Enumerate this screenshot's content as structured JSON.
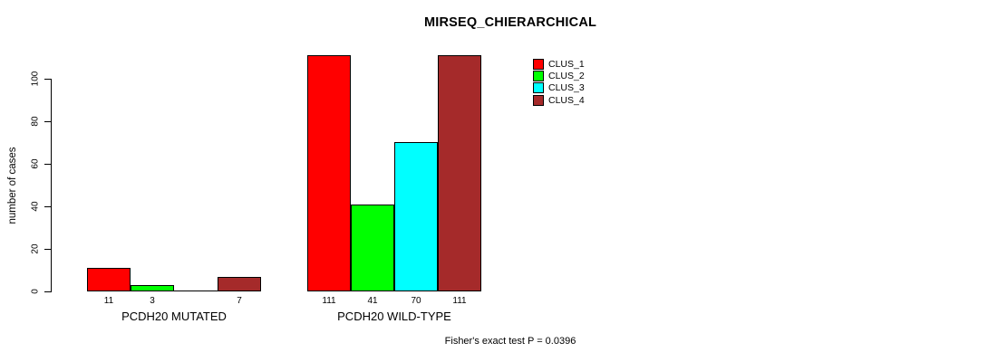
{
  "chart_data": {
    "type": "bar",
    "title": "MIRSEQ_CHIERARCHICAL",
    "ylabel": "number of cases",
    "xlabel": "",
    "ylim": [
      0,
      114
    ],
    "yticks": [
      0,
      20,
      40,
      60,
      80,
      100
    ],
    "grid": false,
    "legend_position": "top-right",
    "series": [
      "CLUS_1",
      "CLUS_2",
      "CLUS_3",
      "CLUS_4"
    ],
    "colors": [
      "#FF0000",
      "#00FF00",
      "#00FFFF",
      "#A52A2A"
    ],
    "groups": [
      {
        "label": "PCDH20 MUTATED",
        "values": [
          11,
          3,
          0,
          7
        ],
        "bar_labels": [
          "11",
          "3",
          "",
          "7"
        ]
      },
      {
        "label": "PCDH20 WILD-TYPE",
        "values": [
          111,
          41,
          70,
          111
        ],
        "bar_labels": [
          "111",
          "41",
          "70",
          "111"
        ]
      }
    ],
    "annotation": "Fisher's exact test P = 0.0396"
  }
}
